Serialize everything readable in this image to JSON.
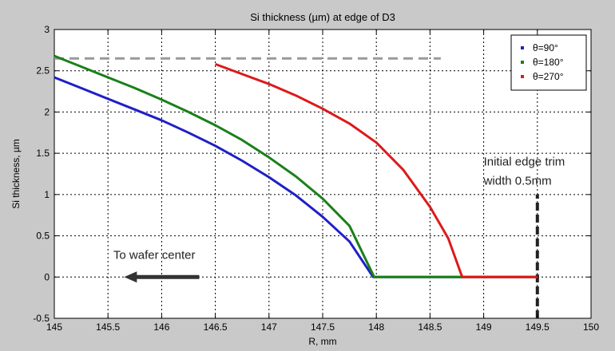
{
  "chart_data": {
    "type": "line",
    "title": "Si thickness (µm) at edge of D3",
    "xlabel": "R, mm",
    "ylabel": "Si thickness, µm",
    "xlim": [
      145,
      150
    ],
    "ylim": [
      -0.5,
      3
    ],
    "xticks": [
      145,
      145.5,
      146,
      146.5,
      147,
      147.5,
      148,
      148.5,
      149,
      149.5,
      150
    ],
    "xtick_labels": [
      "145",
      "145.5",
      "146",
      "146.5",
      "147",
      "147.5",
      "148",
      "148.5",
      "149",
      "149.5",
      "150"
    ],
    "yticks": [
      -0.5,
      0,
      0.5,
      1,
      1.5,
      2,
      2.5,
      3
    ],
    "ytick_labels": [
      "-0.5",
      "0",
      "0.5",
      "1",
      "1.5",
      "2",
      "2.5",
      "3"
    ],
    "grid": true,
    "legend_position": "top-right",
    "series": [
      {
        "name": "θ=90°",
        "color": "#1f1fc8",
        "x": [
          145,
          145.25,
          145.5,
          145.75,
          146,
          146.25,
          146.5,
          146.75,
          147,
          147.25,
          147.5,
          147.75,
          147.97,
          148.5,
          149.5
        ],
        "y": [
          2.42,
          2.29,
          2.16,
          2.03,
          1.9,
          1.75,
          1.59,
          1.41,
          1.21,
          0.99,
          0.73,
          0.43,
          0.0,
          0.0,
          0.0
        ]
      },
      {
        "name": "θ=180°",
        "color": "#1a801a",
        "x": [
          145,
          145.25,
          145.5,
          145.75,
          146,
          146.25,
          146.5,
          146.75,
          147,
          147.25,
          147.5,
          147.75,
          147.98,
          148.5,
          149.5
        ],
        "y": [
          2.68,
          2.55,
          2.42,
          2.29,
          2.15,
          2.0,
          1.84,
          1.66,
          1.45,
          1.22,
          0.95,
          0.62,
          0.0,
          0.0,
          0.0
        ]
      },
      {
        "name": "θ=270°",
        "color": "#dd1a1a",
        "x": [
          146.5,
          146.75,
          147,
          147.25,
          147.5,
          147.75,
          148,
          148.25,
          148.5,
          148.67,
          148.8,
          149.2,
          149.5
        ],
        "y": [
          2.58,
          2.46,
          2.34,
          2.2,
          2.04,
          1.86,
          1.63,
          1.3,
          0.85,
          0.47,
          0.0,
          0.0,
          0.0
        ]
      }
    ],
    "reference_lines": [
      {
        "orientation": "horizontal",
        "y": 2.65,
        "x_from": 145,
        "x_to": 148.6,
        "color": "#999999",
        "style": "dashed"
      },
      {
        "orientation": "vertical",
        "x": 149.5,
        "y_from": -0.5,
        "y_to": 1.0,
        "color": "#222222",
        "style": "dashed"
      }
    ],
    "annotations": [
      {
        "text": "Initial edge trim",
        "x": 149.0,
        "y": 1.35
      },
      {
        "text": "width 0.5mm",
        "x": 149.0,
        "y": 1.12
      },
      {
        "text": "To wafer center",
        "x": 145.55,
        "y": 0.22
      }
    ],
    "arrow": {
      "from": [
        146.35,
        0.0
      ],
      "to": [
        145.65,
        0.0
      ],
      "color": "#333333"
    }
  }
}
